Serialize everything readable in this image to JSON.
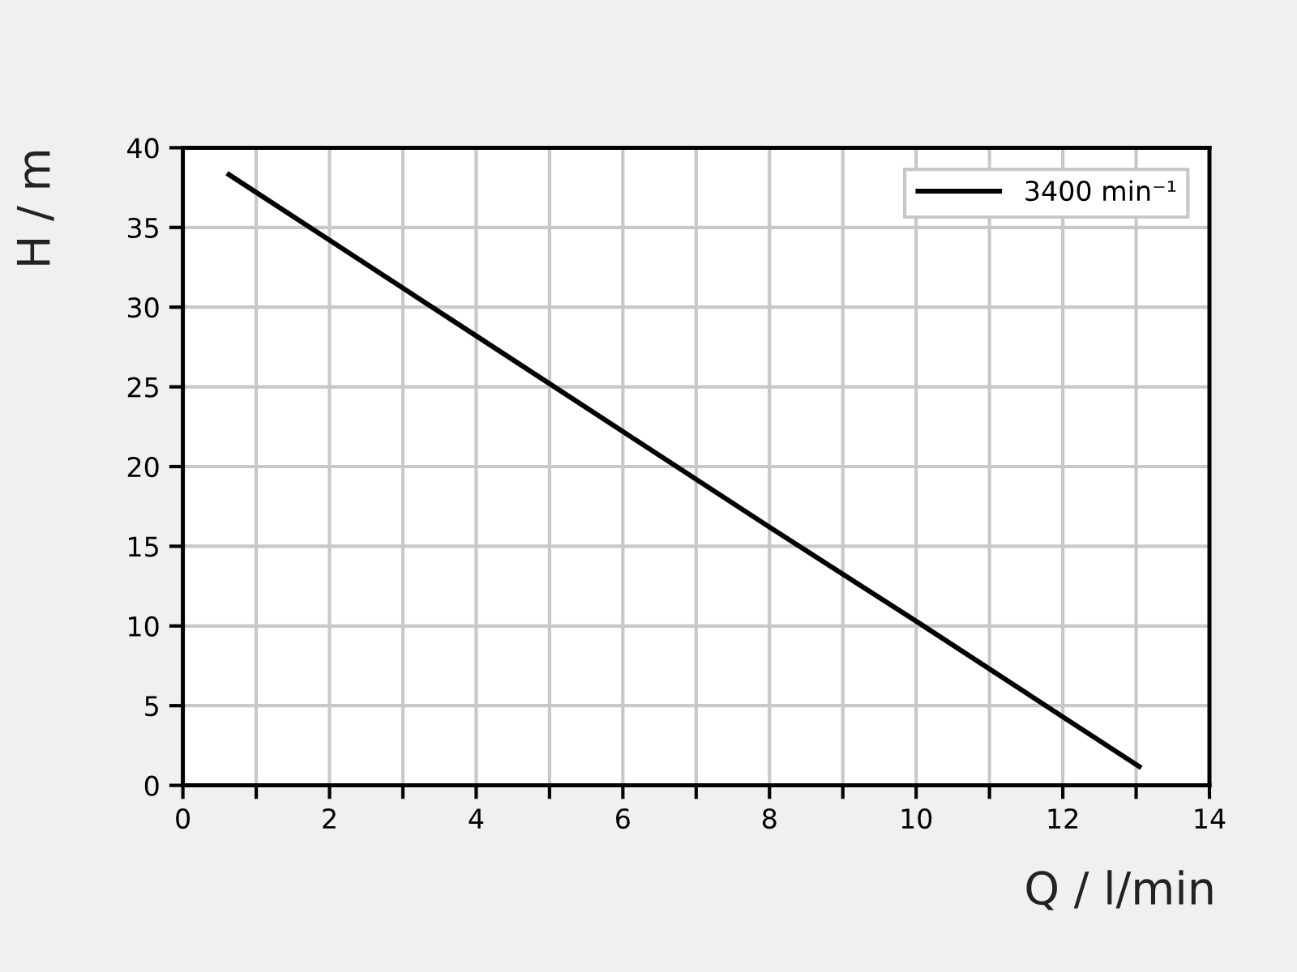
{
  "chart_data": {
    "type": "line",
    "xlabel": "Q / l/min",
    "ylabel": "H / m",
    "x": [
      0.6,
      2,
      4,
      6,
      8,
      10,
      12,
      13.07
    ],
    "series": [
      {
        "name": "3400 min⁻¹",
        "color": "#000000",
        "values": [
          38.4,
          34.2,
          28.2,
          22.2,
          16.2,
          10.3,
          4.3,
          1.1
        ]
      }
    ],
    "xlim": [
      0,
      14
    ],
    "xticks": [
      0,
      {
        "value": 1,
        "label": null
      },
      2,
      {
        "value": 3,
        "label": null
      },
      4,
      {
        "value": 5,
        "label": null
      },
      6,
      {
        "value": 7,
        "label": null
      },
      8,
      {
        "value": 9,
        "label": null
      },
      10,
      {
        "value": 11,
        "label": null
      },
      12,
      {
        "value": 13,
        "label": null
      },
      14
    ],
    "ylim": [
      0,
      40
    ],
    "yticks": [
      0,
      5,
      10,
      15,
      20,
      25,
      30,
      35,
      40
    ],
    "grid": true,
    "legend": "top right",
    "marker": "none",
    "line_style": "solid"
  }
}
